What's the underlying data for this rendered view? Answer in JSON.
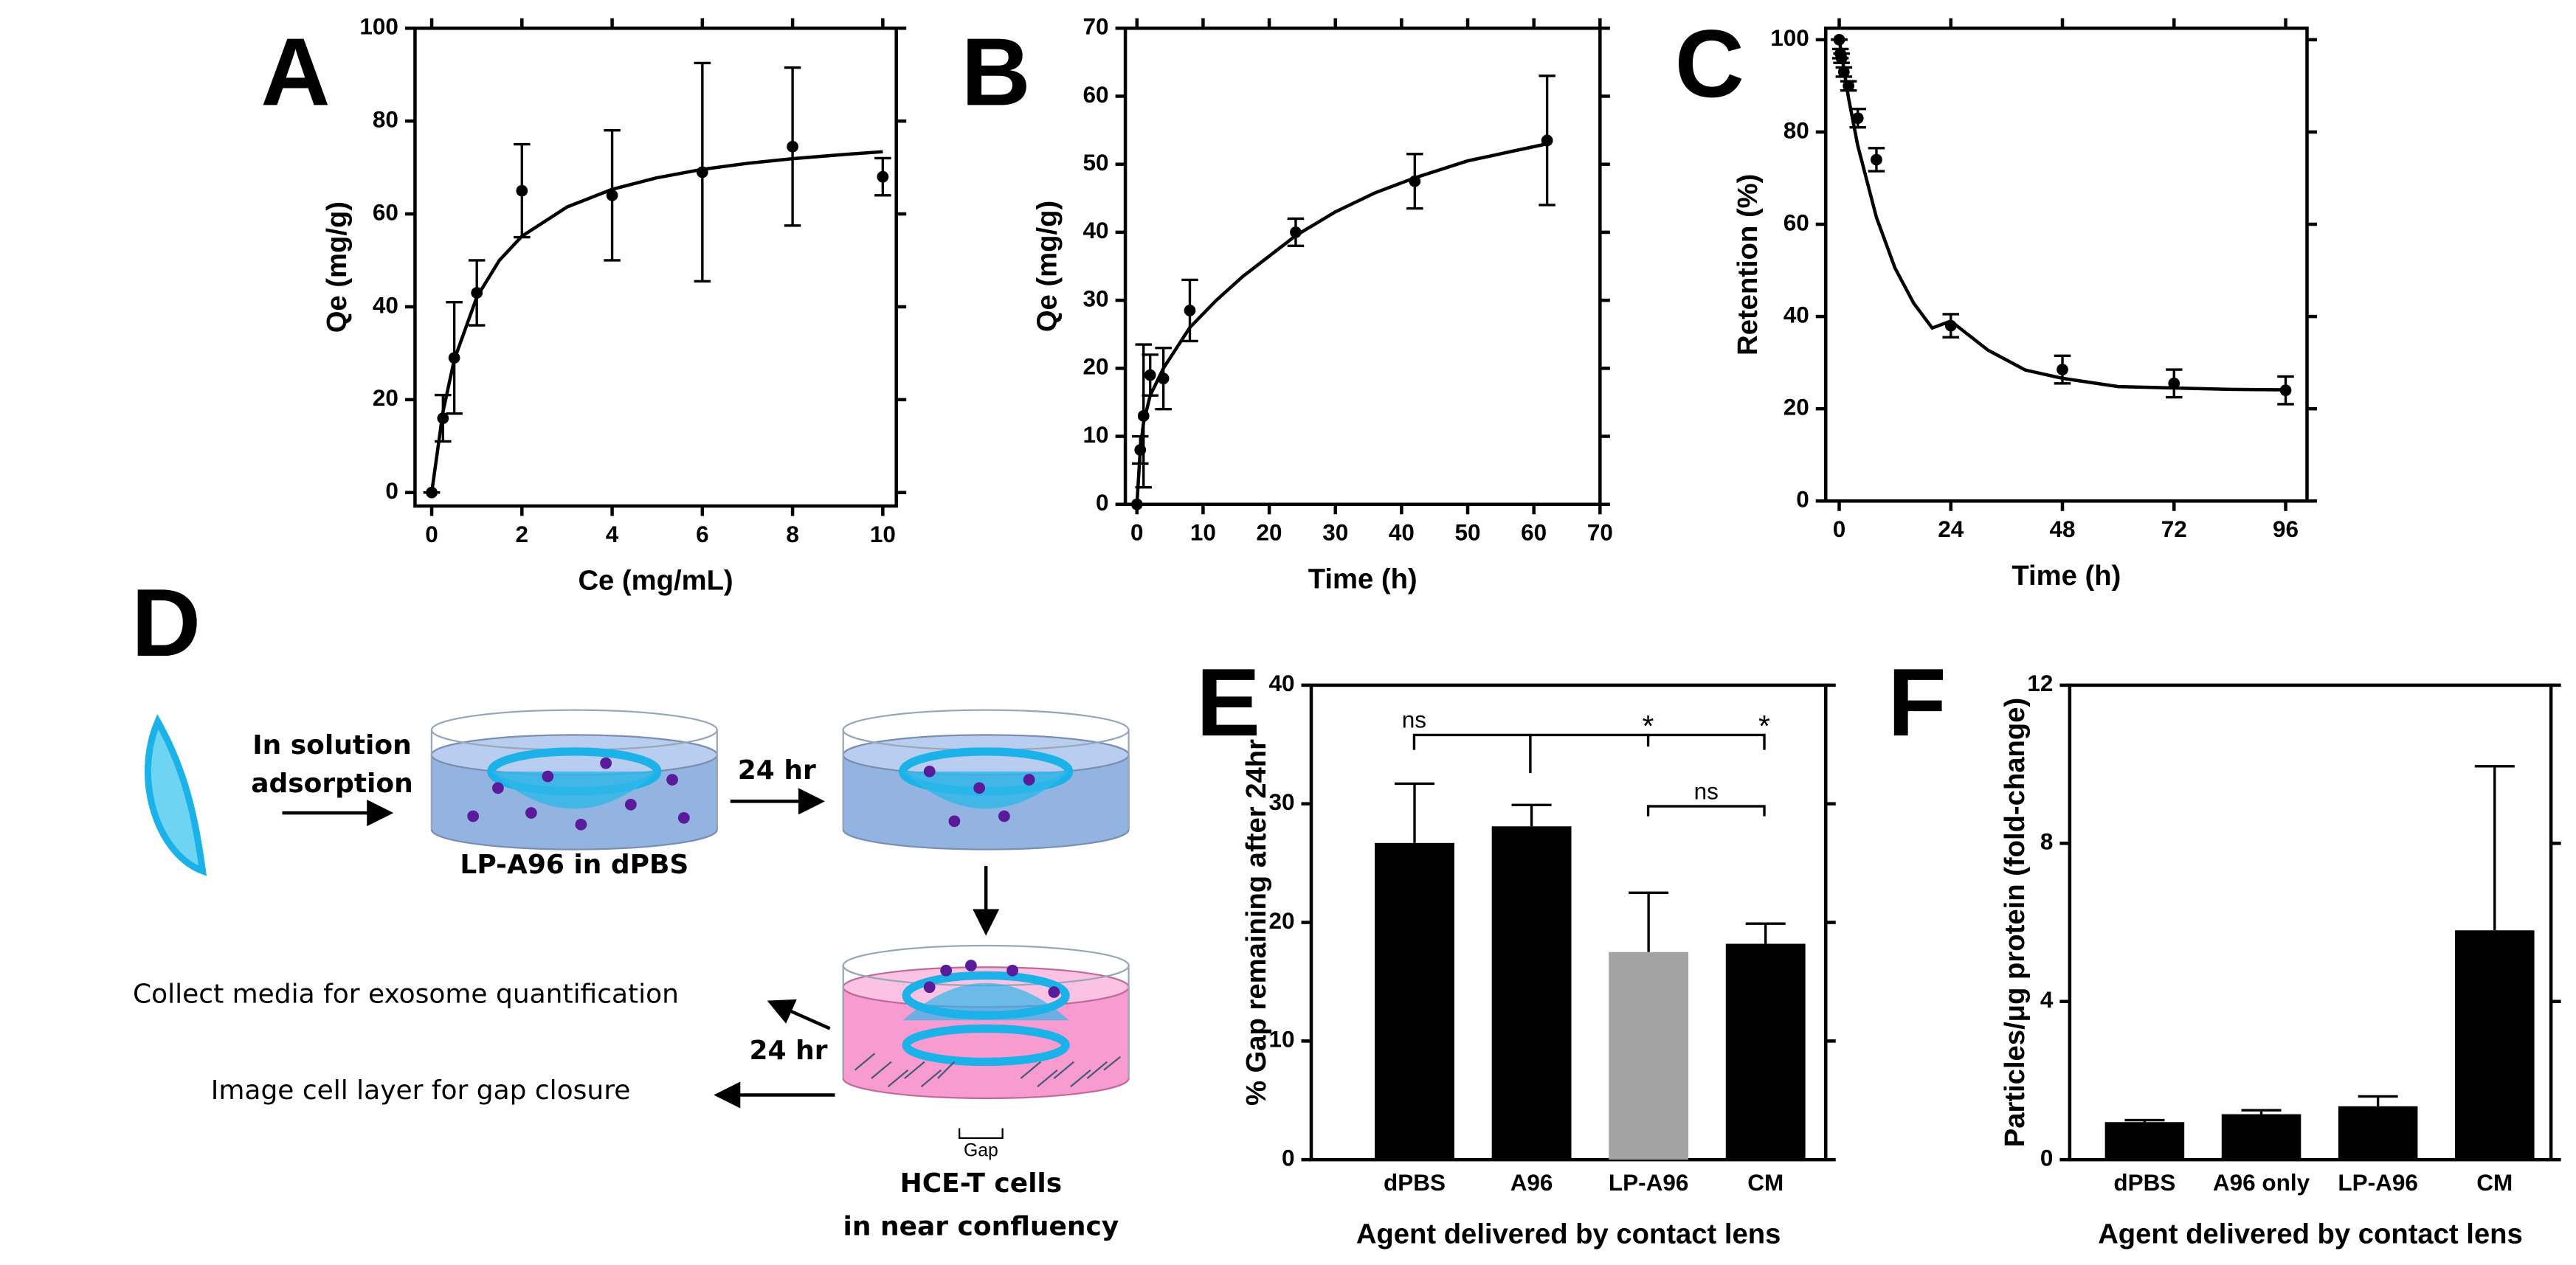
{
  "chart_data": [
    {
      "type": "scatter",
      "panel_label": "A",
      "xlabel": "Ce (mg/mL)",
      "ylabel": "Qe (mg/g)",
      "x": [
        0,
        0.25,
        0.5,
        1,
        2,
        4,
        6,
        8,
        10
      ],
      "values": [
        0,
        16,
        29,
        43,
        65,
        64,
        69,
        74.5,
        68
      ],
      "errors": [
        0,
        5,
        12,
        7,
        10,
        14,
        23.5,
        17,
        4
      ],
      "fit": {
        "x": [
          0,
          0.25,
          0.5,
          1,
          1.5,
          2,
          3,
          4,
          5,
          6,
          7,
          8,
          9,
          10
        ],
        "values": [
          0,
          17.4,
          28.6,
          42.1,
          50,
          55.2,
          61.5,
          65.3,
          67.8,
          69.6,
          70.9,
          71.9,
          72.7,
          73.4
        ]
      },
      "xlim": [
        -0.37,
        10.3
      ],
      "xticks": [
        0,
        2,
        4,
        6,
        8,
        10
      ],
      "ylim": [
        -2.9,
        100
      ],
      "yticks": [
        0,
        20,
        40,
        60,
        80,
        100
      ],
      "color": "#000000"
    },
    {
      "type": "scatter",
      "panel_label": "B",
      "xlabel": "Time (h)",
      "ylabel": "Qe (mg/g)",
      "x": [
        0,
        0.5,
        1,
        2,
        4,
        8,
        24,
        42,
        62
      ],
      "values": [
        0,
        8,
        13,
        19,
        18.5,
        28.5,
        40,
        47.5,
        53.5
      ],
      "errors": [
        0,
        2,
        10.5,
        3,
        4.5,
        4.5,
        2,
        4,
        9.5
      ],
      "fit": {
        "x": [
          0,
          0.5,
          1,
          2,
          4,
          8,
          12,
          16,
          20,
          24,
          30,
          36,
          42,
          50,
          62
        ],
        "values": [
          0,
          8,
          12,
          16,
          20,
          26,
          30,
          33.5,
          36.5,
          39.5,
          43,
          45.8,
          48,
          50.5,
          53
        ]
      },
      "xlim": [
        -1.75,
        70
      ],
      "xticks": [
        0,
        10,
        20,
        30,
        40,
        50,
        60,
        70
      ],
      "ylim": [
        0,
        70
      ],
      "yticks": [
        0,
        10,
        20,
        30,
        40,
        50,
        60,
        70
      ],
      "color": "#000000"
    },
    {
      "type": "scatter",
      "panel_label": "C",
      "xlabel": "Time (h)",
      "ylabel": "Retention (%)",
      "x": [
        0,
        0.25,
        0.5,
        1,
        2,
        4,
        8,
        24,
        48,
        72,
        96
      ],
      "values": [
        100,
        97,
        96,
        93,
        90,
        83,
        74,
        38,
        28.5,
        25.5,
        24
      ],
      "errors": [
        0,
        1,
        1,
        1,
        1,
        2,
        2.5,
        2.5,
        3,
        3,
        3
      ],
      "fit": {
        "x": [
          0,
          2,
          4,
          8,
          12,
          16,
          20,
          24,
          32,
          40,
          48,
          60,
          72,
          84,
          96
        ],
        "values": [
          100,
          87.4,
          77,
          61.5,
          50.5,
          42.9,
          37.5,
          39,
          32.7,
          28.4,
          26.6,
          24.8,
          24.5,
          24.2,
          24.1
        ]
      },
      "xlim": [
        -2.9,
        100.6
      ],
      "xticks": [
        0,
        24,
        48,
        72,
        96
      ],
      "ylim": [
        0,
        102.5
      ],
      "yticks": [
        0,
        20,
        40,
        60,
        80,
        100
      ],
      "color": "#000000"
    },
    {
      "type": "bar",
      "panel_label": "E",
      "xlabel": "Agent delivered by contact lens",
      "ylabel": "% Gap remaining after 24hr",
      "categories": [
        "dPBS",
        "A96",
        "LP-A96",
        "CM"
      ],
      "values": [
        26.7,
        28.1,
        17.5,
        18.2
      ],
      "errors": [
        5,
        1.8,
        5,
        1.7
      ],
      "colors": [
        "#000000",
        "#000000",
        "#a3a3a3",
        "#000000"
      ],
      "ylim": [
        0,
        40
      ],
      "yticks": [
        0,
        10,
        20,
        30,
        40
      ],
      "annotations": [
        "ns",
        "*",
        "*",
        "ns"
      ]
    },
    {
      "type": "bar",
      "panel_label": "F",
      "xlabel": "Agent delivered by contact lens",
      "ylabel": "Particles/μg protein (fold-change)",
      "categories": [
        "dPBS",
        "A96 only",
        "LP-A96",
        "CM"
      ],
      "values": [
        0.95,
        1.15,
        1.35,
        5.8
      ],
      "errors": [
        0.05,
        0.1,
        0.25,
        4.15
      ],
      "colors": [
        "#000000",
        "#000000",
        "#000000",
        "#000000"
      ],
      "ylim": [
        0,
        12
      ],
      "yticks": [
        0,
        4,
        8,
        12
      ]
    }
  ],
  "diagram": {
    "panel_label": "D",
    "step1": [
      "In solution",
      "adsorption"
    ],
    "time1": "24 hr",
    "dish1_label": "LP-A96 in dPBS",
    "collect": "Collect media for exosome quantification",
    "time2": "24 hr",
    "image": "Image cell layer for gap closure",
    "gap": "Gap",
    "cells": [
      "HCE-T cells",
      "in near confluency"
    ]
  }
}
